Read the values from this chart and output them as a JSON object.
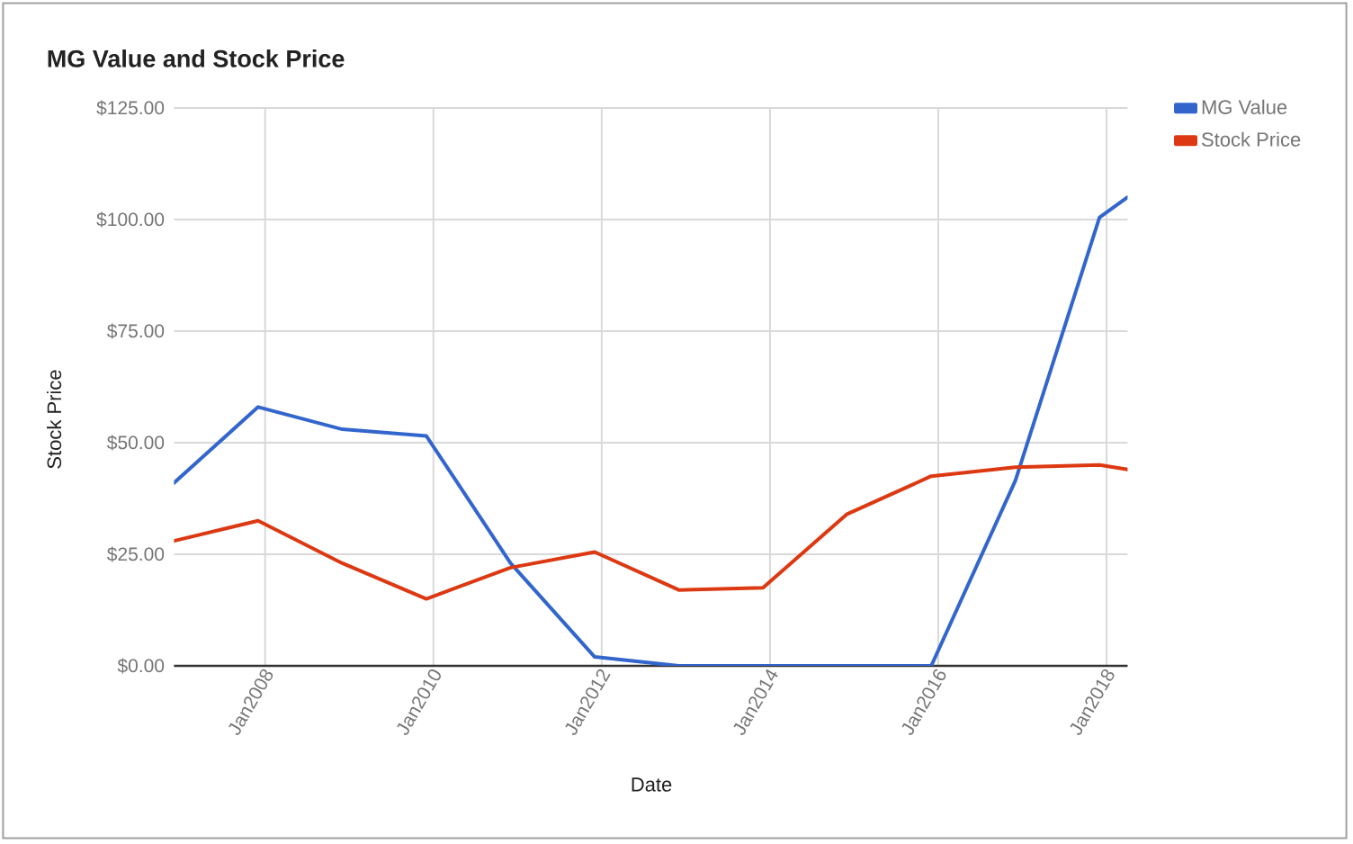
{
  "chart_data": {
    "type": "line",
    "title": "MG Value and Stock Price",
    "xlabel": "Date",
    "ylabel": "Stock Price",
    "x": [
      "2006-12",
      "2007-12",
      "2008-12",
      "2009-12",
      "2010-12",
      "2011-12",
      "2012-12",
      "2013-12",
      "2014-12",
      "2015-12",
      "2016-12",
      "2017-12",
      "2018-04"
    ],
    "series": [
      {
        "name": "MG Value",
        "color": "#3366cc",
        "values": [
          41,
          58,
          53,
          51.5,
          23,
          2,
          0,
          0,
          0,
          0,
          41.5,
          100.5,
          105
        ]
      },
      {
        "name": "Stock Price",
        "color": "#dc3912",
        "values": [
          28,
          32.5,
          23,
          15,
          22,
          25.5,
          17,
          17.5,
          34,
          42.5,
          44.5,
          45,
          44
        ]
      }
    ],
    "xlim": [
      "2006-12",
      "2018-04"
    ],
    "xticks": [
      {
        "value": "2008-01",
        "label": "Jan2008"
      },
      {
        "value": "2010-01",
        "label": "Jan2010"
      },
      {
        "value": "2012-01",
        "label": "Jan2012"
      },
      {
        "value": "2014-01",
        "label": "Jan2014"
      },
      {
        "value": "2016-01",
        "label": "Jan2016"
      },
      {
        "value": "2018-01",
        "label": "Jan2018"
      }
    ],
    "ylim": [
      0,
      125
    ],
    "yticks": [
      {
        "value": 0,
        "label": "$0.00"
      },
      {
        "value": 25,
        "label": "$25.00"
      },
      {
        "value": 50,
        "label": "$50.00"
      },
      {
        "value": 75,
        "label": "$75.00"
      },
      {
        "value": 100,
        "label": "$100.00"
      },
      {
        "value": 125,
        "label": "$125.00"
      }
    ],
    "grid": true,
    "legend": "top right",
    "line_style": "solid"
  }
}
